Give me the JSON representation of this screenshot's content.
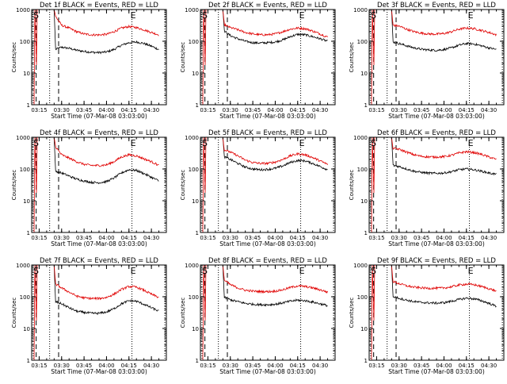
{
  "colors": {
    "events": "#000000",
    "lld": "#e00000",
    "frame": "#000000",
    "background": "#ffffff"
  },
  "chart_data": [
    {
      "type": "line",
      "title": "Det 1f BLACK = Events, RED = LLD",
      "xlabel": "Start Time (07-Mar-08 03:03:00)",
      "ylabel": "Counts/sec",
      "ylim": [
        1,
        1000
      ],
      "y_scale": "log",
      "x_ticks": [
        "03:15",
        "03:30",
        "03:45",
        "04:00",
        "04:15",
        "04:30"
      ],
      "y_ticks": [
        "1",
        "10",
        "100",
        "1000"
      ],
      "annotations": [
        "S",
        "E"
      ],
      "series": [
        {
          "name": "Events",
          "x": [
            "03:26",
            "03:30",
            "03:35",
            "03:40",
            "03:45",
            "03:50",
            "03:55",
            "04:00",
            "04:05",
            "04:10",
            "04:15",
            "04:20",
            "04:25",
            "04:30",
            "04:35"
          ],
          "values": [
            55,
            65,
            60,
            52,
            48,
            45,
            44,
            46,
            55,
            75,
            90,
            95,
            85,
            70,
            55
          ]
        },
        {
          "name": "LLD",
          "x": [
            "03:26",
            "03:30",
            "03:35",
            "03:40",
            "03:45",
            "03:50",
            "03:55",
            "04:00",
            "04:05",
            "04:10",
            "04:15",
            "04:20",
            "04:25",
            "04:30",
            "04:35"
          ],
          "values": [
            600,
            320,
            260,
            200,
            170,
            160,
            158,
            165,
            200,
            260,
            290,
            270,
            230,
            190,
            160
          ]
        }
      ]
    },
    {
      "type": "line",
      "title": "Det 2f BLACK = Events, RED = LLD",
      "xlabel": "Start Time (07-Mar-08 03:03:00)",
      "ylabel": "Counts/sec",
      "ylim": [
        1,
        1000
      ],
      "y_scale": "log",
      "x_ticks": [
        "03:15",
        "03:30",
        "03:45",
        "04:00",
        "04:15",
        "04:30"
      ],
      "y_ticks": [
        "1",
        "10",
        "100",
        "1000"
      ],
      "annotations": [
        "S",
        "E"
      ],
      "series": [
        {
          "name": "Events",
          "x": [
            "03:26",
            "03:30",
            "03:35",
            "03:40",
            "03:45",
            "03:50",
            "03:55",
            "04:00",
            "04:05",
            "04:10",
            "04:15",
            "04:20",
            "04:25",
            "04:30",
            "04:35"
          ],
          "values": [
            210,
            150,
            120,
            100,
            90,
            88,
            90,
            95,
            110,
            140,
            165,
            160,
            140,
            120,
            100
          ]
        },
        {
          "name": "LLD",
          "x": [
            "03:26",
            "03:30",
            "03:35",
            "03:40",
            "03:45",
            "03:50",
            "03:55",
            "04:00",
            "04:05",
            "04:10",
            "04:15",
            "04:20",
            "04:25",
            "04:30",
            "04:35"
          ],
          "values": [
            330,
            270,
            230,
            190,
            170,
            160,
            160,
            170,
            200,
            240,
            260,
            250,
            210,
            170,
            135
          ]
        }
      ]
    },
    {
      "type": "line",
      "title": "Det 3f BLACK = Events, RED = LLD",
      "xlabel": "Start Time (07-Mar-08 03:03:00)",
      "ylabel": "Counts/sec",
      "ylim": [
        1,
        1000
      ],
      "y_scale": "log",
      "x_ticks": [
        "03:15",
        "03:30",
        "03:45",
        "04:00",
        "04:15",
        "04:30"
      ],
      "y_ticks": [
        "1",
        "10",
        "100",
        "1000"
      ],
      "annotations": [
        "S",
        "E"
      ],
      "series": [
        {
          "name": "Events",
          "x": [
            "03:26",
            "03:30",
            "03:35",
            "03:40",
            "03:45",
            "03:50",
            "03:55",
            "04:00",
            "04:05",
            "04:10",
            "04:15",
            "04:20",
            "04:25",
            "04:30",
            "04:35"
          ],
          "values": [
            95,
            85,
            72,
            62,
            56,
            53,
            52,
            55,
            62,
            75,
            85,
            82,
            72,
            62,
            55
          ]
        },
        {
          "name": "LLD",
          "x": [
            "03:26",
            "03:30",
            "03:35",
            "03:40",
            "03:45",
            "03:50",
            "03:55",
            "04:00",
            "04:05",
            "04:10",
            "04:15",
            "04:20",
            "04:25",
            "04:30",
            "04:35"
          ],
          "values": [
            320,
            300,
            240,
            200,
            180,
            170,
            168,
            175,
            200,
            240,
            260,
            250,
            220,
            190,
            160
          ]
        }
      ]
    },
    {
      "type": "line",
      "title": "Det 4f BLACK = Events, RED = LLD",
      "xlabel": "Start Time (07-Mar-08 03:03:00)",
      "ylabel": "Counts/sec",
      "ylim": [
        1,
        1000
      ],
      "y_scale": "log",
      "x_ticks": [
        "03:15",
        "03:30",
        "03:45",
        "04:00",
        "04:15",
        "04:30"
      ],
      "y_ticks": [
        "1",
        "10",
        "100",
        "1000"
      ],
      "annotations": [
        "S",
        "E"
      ],
      "series": [
        {
          "name": "Events",
          "x": [
            "03:26",
            "03:30",
            "03:35",
            "03:40",
            "03:45",
            "03:50",
            "03:55",
            "04:00",
            "04:05",
            "04:10",
            "04:15",
            "04:20",
            "04:25",
            "04:30",
            "04:35"
          ],
          "values": [
            85,
            75,
            60,
            48,
            42,
            38,
            37,
            40,
            52,
            75,
            95,
            90,
            72,
            55,
            42
          ]
        },
        {
          "name": "LLD",
          "x": [
            "03:26",
            "03:30",
            "03:35",
            "03:40",
            "03:45",
            "03:50",
            "03:55",
            "04:00",
            "04:05",
            "04:10",
            "04:15",
            "04:20",
            "04:25",
            "04:30",
            "04:35"
          ],
          "values": [
            500,
            280,
            220,
            170,
            140,
            130,
            128,
            135,
            170,
            240,
            280,
            260,
            210,
            170,
            130
          ]
        }
      ]
    },
    {
      "type": "line",
      "title": "Det 5f BLACK = Events, RED = LLD",
      "xlabel": "Start Time (07-Mar-08 03:03:00)",
      "ylabel": "Counts/sec",
      "ylim": [
        1,
        1000
      ],
      "y_scale": "log",
      "x_ticks": [
        "03:15",
        "03:30",
        "03:45",
        "04:00",
        "04:15",
        "04:30"
      ],
      "y_ticks": [
        "1",
        "10",
        "100",
        "1000"
      ],
      "annotations": [
        "S",
        "E"
      ],
      "series": [
        {
          "name": "Events",
          "x": [
            "03:26",
            "03:30",
            "03:35",
            "03:40",
            "03:45",
            "03:50",
            "03:55",
            "04:00",
            "04:05",
            "04:10",
            "04:15",
            "04:20",
            "04:25",
            "04:30",
            "04:35"
          ],
          "values": [
            240,
            200,
            150,
            115,
            100,
            95,
            97,
            105,
            125,
            160,
            185,
            180,
            150,
            120,
            95
          ]
        },
        {
          "name": "LLD",
          "x": [
            "03:26",
            "03:30",
            "03:35",
            "03:40",
            "03:45",
            "03:50",
            "03:55",
            "04:00",
            "04:05",
            "04:10",
            "04:15",
            "04:20",
            "04:25",
            "04:30",
            "04:35"
          ],
          "values": [
            400,
            340,
            260,
            190,
            160,
            150,
            150,
            165,
            200,
            260,
            300,
            280,
            230,
            180,
            140
          ]
        }
      ]
    },
    {
      "type": "line",
      "title": "Det 6f BLACK = Events, RED = LLD",
      "xlabel": "Start Time (07-Mar-08 03:03:00)",
      "ylabel": "Counts/sec",
      "ylim": [
        1,
        1000
      ],
      "y_scale": "log",
      "x_ticks": [
        "03:15",
        "03:30",
        "03:45",
        "04:00",
        "04:15",
        "04:30"
      ],
      "y_ticks": [
        "1",
        "10",
        "100",
        "1000"
      ],
      "annotations": [
        "S",
        "E"
      ],
      "series": [
        {
          "name": "Events",
          "x": [
            "03:26",
            "03:30",
            "03:35",
            "03:40",
            "03:45",
            "03:50",
            "03:55",
            "04:00",
            "04:05",
            "04:10",
            "04:15",
            "04:20",
            "04:25",
            "04:30",
            "04:35"
          ],
          "values": [
            130,
            120,
            100,
            85,
            78,
            74,
            73,
            75,
            82,
            95,
            100,
            95,
            85,
            75,
            68
          ]
        },
        {
          "name": "LLD",
          "x": [
            "03:26",
            "03:30",
            "03:35",
            "03:40",
            "03:45",
            "03:50",
            "03:55",
            "04:00",
            "04:05",
            "04:10",
            "04:15",
            "04:20",
            "04:25",
            "04:30",
            "04:35"
          ],
          "values": [
            450,
            420,
            340,
            280,
            250,
            240,
            238,
            245,
            270,
            320,
            350,
            330,
            290,
            240,
            200
          ]
        }
      ]
    },
    {
      "type": "line",
      "title": "Det 7f BLACK = Events, RED = LLD",
      "xlabel": "Start Time (07-Mar-08 03:03:00)",
      "ylabel": "Counts/sec",
      "ylim": [
        1,
        1000
      ],
      "y_scale": "log",
      "x_ticks": [
        "03:15",
        "03:30",
        "03:45",
        "04:00",
        "04:15",
        "04:30"
      ],
      "y_ticks": [
        "1",
        "10",
        "100",
        "1000"
      ],
      "annotations": [
        "S",
        "E"
      ],
      "series": [
        {
          "name": "Events",
          "x": [
            "03:26",
            "03:30",
            "03:35",
            "03:40",
            "03:45",
            "03:50",
            "03:55",
            "04:00",
            "04:05",
            "04:10",
            "04:15",
            "04:20",
            "04:25",
            "04:30",
            "04:35"
          ],
          "values": [
            70,
            60,
            45,
            35,
            32,
            30,
            30,
            33,
            42,
            60,
            75,
            72,
            58,
            45,
            35
          ]
        },
        {
          "name": "LLD",
          "x": [
            "03:26",
            "03:30",
            "03:35",
            "03:40",
            "03:45",
            "03:50",
            "03:55",
            "04:00",
            "04:05",
            "04:10",
            "04:15",
            "04:20",
            "04:25",
            "04:30",
            "04:35"
          ],
          "values": [
            250,
            190,
            140,
            105,
            92,
            88,
            88,
            95,
            120,
            170,
            210,
            200,
            160,
            120,
            95
          ]
        }
      ]
    },
    {
      "type": "line",
      "title": "Det 8f BLACK = Events, RED = LLD",
      "xlabel": "Start Time (07-Mar-08 03:03:00)",
      "ylabel": "Counts/sec",
      "ylim": [
        1,
        1000
      ],
      "y_scale": "log",
      "x_ticks": [
        "03:15",
        "03:30",
        "03:45",
        "04:00",
        "04:15",
        "04:30"
      ],
      "y_ticks": [
        "1",
        "10",
        "100",
        "1000"
      ],
      "annotations": [
        "S",
        "E"
      ],
      "series": [
        {
          "name": "Events",
          "x": [
            "03:26",
            "03:30",
            "03:35",
            "03:40",
            "03:45",
            "03:50",
            "03:55",
            "04:00",
            "04:05",
            "04:10",
            "04:15",
            "04:20",
            "04:25",
            "04:30",
            "04:35"
          ],
          "values": [
            95,
            80,
            70,
            62,
            58,
            56,
            56,
            58,
            64,
            72,
            78,
            75,
            68,
            60,
            52
          ]
        },
        {
          "name": "LLD",
          "x": [
            "03:26",
            "03:30",
            "03:35",
            "03:40",
            "03:45",
            "03:50",
            "03:55",
            "04:00",
            "04:05",
            "04:10",
            "04:15",
            "04:20",
            "04:25",
            "04:30",
            "04:35"
          ],
          "values": [
            330,
            240,
            190,
            160,
            150,
            145,
            145,
            150,
            165,
            195,
            220,
            210,
            190,
            165,
            140
          ]
        }
      ]
    },
    {
      "type": "line",
      "title": "Det 9f BLACK = Events, RED = LLD",
      "xlabel": "Start Time (07-Mar-08 03:03:00)",
      "ylabel": "Counts/sec",
      "ylim": [
        1,
        1000
      ],
      "y_scale": "log",
      "x_ticks": [
        "03:15",
        "03:30",
        "03:45",
        "04:00",
        "04:15",
        "04:30"
      ],
      "y_ticks": [
        "1",
        "10",
        "100",
        "1000"
      ],
      "annotations": [
        "S",
        "E"
      ],
      "series": [
        {
          "name": "Events",
          "x": [
            "03:26",
            "03:30",
            "03:35",
            "03:40",
            "03:45",
            "03:50",
            "03:55",
            "04:00",
            "04:05",
            "04:10",
            "04:15",
            "04:20",
            "04:25",
            "04:30",
            "04:35"
          ],
          "values": [
            100,
            90,
            78,
            70,
            66,
            64,
            63,
            65,
            72,
            82,
            90,
            86,
            75,
            62,
            50
          ]
        },
        {
          "name": "LLD",
          "x": [
            "03:26",
            "03:30",
            "03:35",
            "03:40",
            "03:45",
            "03:50",
            "03:55",
            "04:00",
            "04:05",
            "04:10",
            "04:15",
            "04:20",
            "04:25",
            "04:30",
            "04:35"
          ],
          "values": [
            300,
            260,
            220,
            200,
            190,
            185,
            185,
            190,
            205,
            235,
            250,
            240,
            210,
            180,
            150
          ]
        }
      ]
    }
  ]
}
